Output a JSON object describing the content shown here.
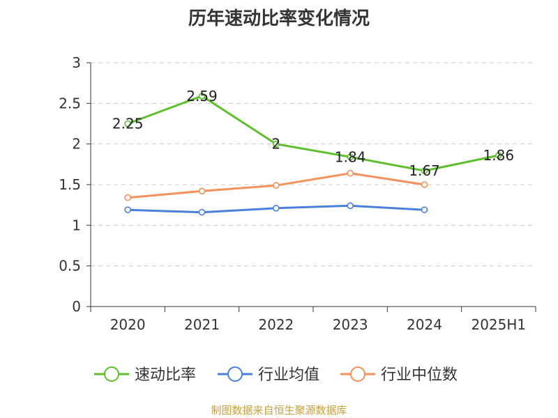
{
  "title": "历年速动比率变化情况",
  "footer": "制图数据来自恒生聚源数据库",
  "chart_data": {
    "type": "line",
    "title": "历年速动比率变化情况",
    "categories": [
      "2020",
      "2021",
      "2022",
      "2023",
      "2024",
      "2025H1"
    ],
    "ylim": [
      0,
      3
    ],
    "yticks": [
      0,
      0.5,
      1,
      1.5,
      2,
      2.5,
      3
    ],
    "ytick_labels": [
      "0",
      "0.5",
      "1",
      "1.5",
      "2",
      "2.5",
      "3"
    ],
    "grid": true,
    "legend_position": "bottom",
    "series": [
      {
        "name": "速动比率",
        "color": "#5cbf2a",
        "values": [
          2.25,
          2.59,
          2.0,
          1.84,
          1.67,
          1.86
        ],
        "labels": [
          "2.25",
          "2.59",
          "2",
          "1.84",
          "1.67",
          "1.86"
        ]
      },
      {
        "name": "行业均值",
        "color": "#4a7fdb",
        "values": [
          1.19,
          1.16,
          1.21,
          1.24,
          1.19,
          null
        ]
      },
      {
        "name": "行业中位数",
        "color": "#f5905a",
        "values": [
          1.34,
          1.42,
          1.49,
          1.64,
          1.5,
          null
        ]
      }
    ]
  }
}
